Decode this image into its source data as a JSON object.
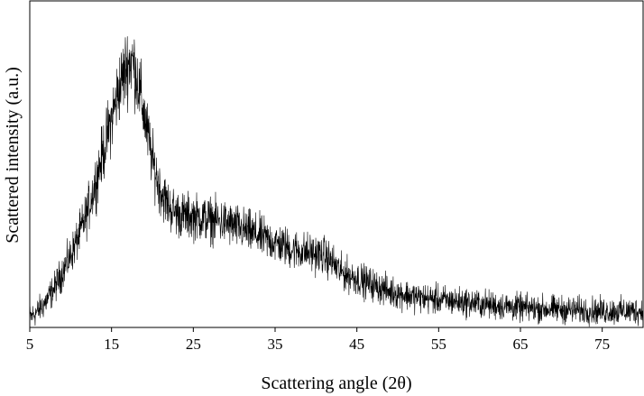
{
  "chart_data": {
    "type": "line",
    "title": "",
    "xlabel": "Scattering angle (2θ)",
    "ylabel": "Scattered intensity (a.u.)",
    "xlim": [
      5,
      80
    ],
    "ylim": [
      0,
      1
    ],
    "x_ticks": [
      5,
      15,
      25,
      35,
      45,
      55,
      65,
      75
    ],
    "y_ticks": [],
    "grid": false,
    "legend": "none",
    "line_color": "#000000",
    "noise": "high-frequency noise superimposed on the profile",
    "series": [
      {
        "x": [
          5,
          6,
          7,
          8,
          9,
          10,
          11,
          12,
          13,
          14,
          15,
          16,
          17,
          17.5,
          18,
          19,
          20,
          21,
          22,
          23,
          24,
          25,
          27,
          29,
          31,
          33,
          35,
          37,
          39,
          41,
          42,
          43,
          45,
          47,
          49,
          51,
          53,
          55,
          57,
          59,
          61,
          63,
          65,
          67,
          69,
          71,
          73,
          75,
          77,
          80
        ],
        "values": [
          0.03,
          0.05,
          0.08,
          0.12,
          0.17,
          0.22,
          0.28,
          0.35,
          0.44,
          0.54,
          0.64,
          0.74,
          0.81,
          0.82,
          0.78,
          0.65,
          0.51,
          0.42,
          0.37,
          0.35,
          0.34,
          0.34,
          0.33,
          0.32,
          0.3,
          0.28,
          0.26,
          0.24,
          0.23,
          0.22,
          0.2,
          0.17,
          0.15,
          0.13,
          0.11,
          0.1,
          0.09,
          0.085,
          0.08,
          0.075,
          0.07,
          0.065,
          0.06,
          0.058,
          0.056,
          0.054,
          0.052,
          0.05,
          0.05,
          0.05
        ]
      }
    ]
  }
}
